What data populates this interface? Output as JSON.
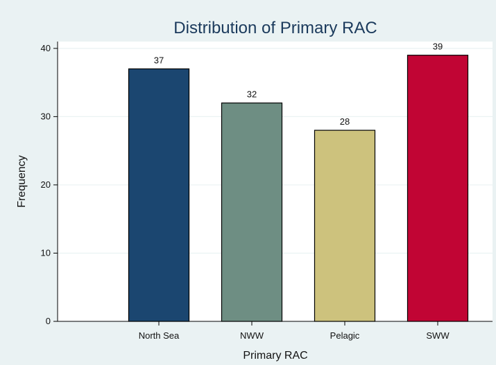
{
  "chart_data": {
    "type": "bar",
    "title": "Distribution of Primary RAC",
    "xlabel": "Primary RAC",
    "ylabel": "Frequency",
    "categories": [
      "North Sea",
      "NWW",
      "Pelagic",
      "SWW"
    ],
    "values": [
      37,
      32,
      28,
      39
    ],
    "colors": [
      "#1b4670",
      "#6e8e83",
      "#cdc27d",
      "#c10534"
    ],
    "yticks": [
      0,
      10,
      20,
      30,
      40
    ],
    "ylim": [
      0,
      41
    ],
    "grid": true,
    "legend": "none",
    "background_color": "#eaf2f3",
    "plot_color": "#ffffff",
    "grid_color": "#eaf2f3"
  }
}
